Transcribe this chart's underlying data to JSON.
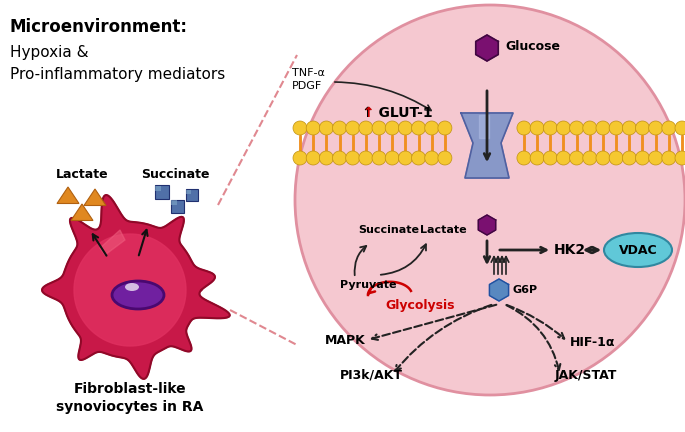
{
  "bg_color": "#ffffff",
  "circle_color": "#f5c8d0",
  "circle_edge_color": "#e090a0",
  "membrane_outer_color": "#f5c830",
  "membrane_inner_color": "#f09020",
  "cell_body_color": "#d8205a",
  "nucleus_color": "#6a1a90",
  "glucose_color": "#7a1070",
  "glut_color": "#8898c0",
  "hk2_label": "HK2",
  "vdac_color": "#60c8d8",
  "g6p_color": "#5888c0",
  "microenv_title": "Microenvironment:",
  "microenv_sub1": "Hypoxia &",
  "microenv_sub2": "Pro-inflammatory mediators",
  "lactate_label": "Lactate",
  "succinate_label": "Succinate",
  "cell_label1": "Fibroblast-like",
  "cell_label2": "synoviocytes in RA",
  "tnf_label": "TNF-α\nPDGF",
  "glucose_label": "Glucose",
  "succinate_in_label": "Succinate",
  "lactate_in_label": "Lactate",
  "pyruvate_label": "Pyruvate",
  "glycolysis_label": "Glycolysis",
  "mapk_label": "MAPK",
  "pi3k_label": "PI3k/AKT",
  "hif_label": "HIF-1α",
  "jak_label": "JAK/STAT",
  "vdac_label": "VDAC",
  "g6p_label": "G6P",
  "triangle_color": "#e08820",
  "square_color": "#5070a8",
  "square_highlight": "#80a8c8"
}
